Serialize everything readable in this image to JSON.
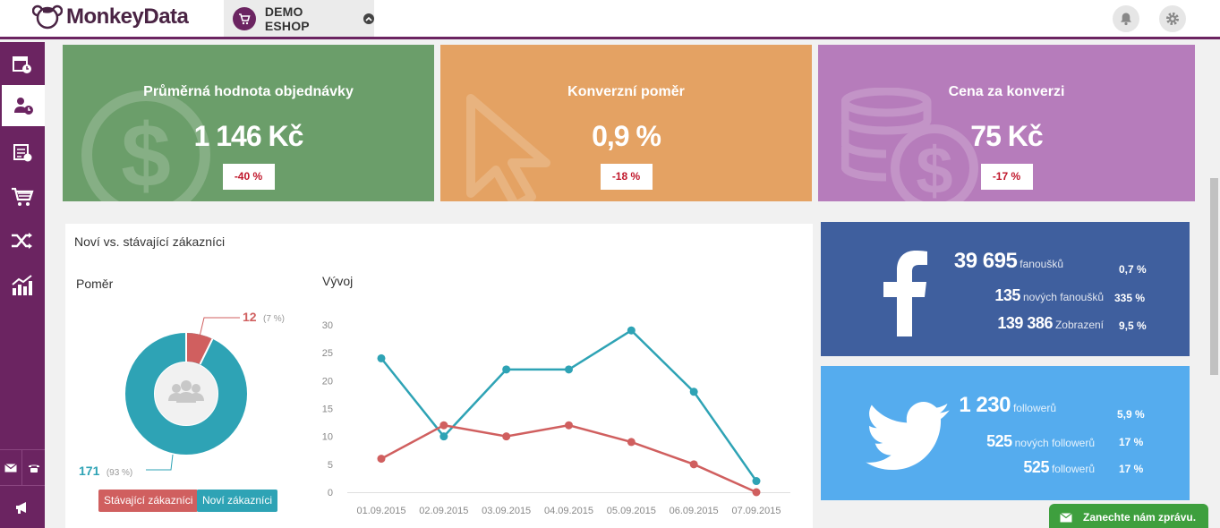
{
  "app": {
    "logo_text": "MonkeyData",
    "shop_name": "DEMO ESHOP"
  },
  "kpis": [
    {
      "title": "Průměrná hodnota objednávky",
      "value": "1 146 Kč",
      "change": "-40 %",
      "color": "#6b9e6a",
      "icon": "dollar-coin-icon"
    },
    {
      "title": "Konverzní poměr",
      "value": "0,9 %",
      "change": "-18 %",
      "color": "#e4a263",
      "icon": "cursor-arrow-icon"
    },
    {
      "title": "Cena za konverzi",
      "value": "75 Kč",
      "change": "-17 %",
      "color": "#b67cbb",
      "icon": "coin-stack-icon"
    }
  ],
  "customers": {
    "title": "Noví vs. stávající zákazníci",
    "ratio_title": "Poměr",
    "trend_title": "Vývoj",
    "existing": {
      "value": "12",
      "pct": "(7 %)",
      "label": "Stávající zákazníci",
      "color": "#d05f5f"
    },
    "new": {
      "value": "171",
      "pct": "(93 %)",
      "label": "Noví zákazníci",
      "color": "#2ea3b5"
    }
  },
  "chart_data": {
    "type": "line",
    "title": "Vývoj",
    "x": [
      "01.09.2015",
      "02.09.2015",
      "03.09.2015",
      "04.09.2015",
      "05.09.2015",
      "06.09.2015",
      "07.09.2015"
    ],
    "yticks": [
      0,
      5,
      10,
      15,
      20,
      25,
      30
    ],
    "ylim": [
      0,
      30
    ],
    "series": [
      {
        "values": [
          24,
          10,
          22,
          22,
          29,
          18,
          2
        ],
        "color": "#2ea3b5"
      },
      {
        "values": [
          6,
          12,
          10,
          12,
          9,
          5,
          0
        ],
        "color": "#d05f5f"
      }
    ],
    "grid": false
  },
  "facebook": {
    "color": "#3f5f9e",
    "rows": [
      {
        "value": "39 695",
        "label": "fanoušků",
        "pct": "0,7 %"
      },
      {
        "value": "135",
        "label": "nových fanoušků",
        "pct": "335 %"
      },
      {
        "value": "139 386",
        "label": "Zobrazení",
        "pct": "9,5 %"
      }
    ]
  },
  "twitter": {
    "color": "#55acee",
    "rows": [
      {
        "value": "1 230",
        "label": "followerů",
        "pct": "5,9 %"
      },
      {
        "value": "525",
        "label": "nových followerů",
        "pct": "17 %"
      },
      {
        "value": "525",
        "label": "followerů",
        "pct": "17 %"
      }
    ]
  },
  "chat": {
    "label": "Zanechte nám zprávu."
  }
}
